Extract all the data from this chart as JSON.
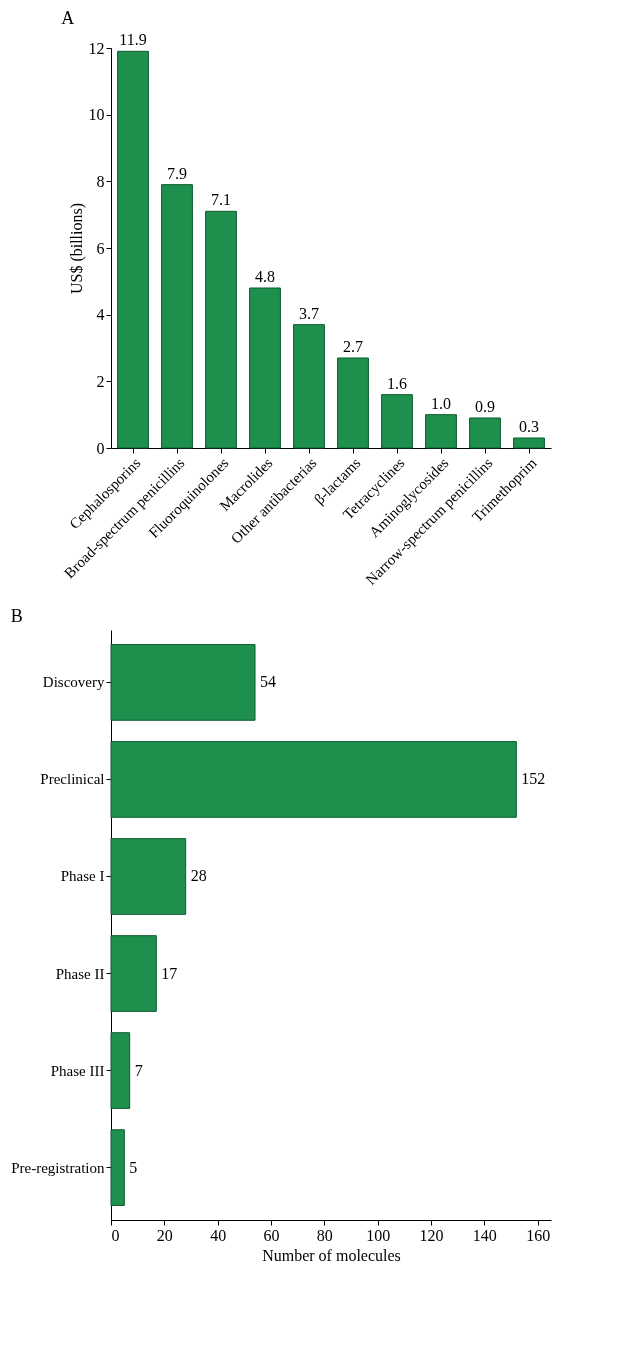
{
  "chart_data": [
    {
      "type": "bar",
      "title": "A",
      "ylabel": "US$ (billions)",
      "categories": [
        "Cephalosporins",
        "Broad-spectrum penicillins",
        "Fluoroquinolones",
        "Macrolides",
        "Other antibacterias",
        "β-lactams",
        "Tetracyclines",
        "Aminoglycosides",
        "Narrow-spectrum penicillins",
        "Trimethoprim"
      ],
      "values": [
        11.9,
        7.9,
        7.1,
        4.8,
        3.7,
        2.7,
        1.6,
        1.0,
        0.9,
        0.3
      ],
      "value_labels": [
        "11.9",
        "7.9",
        "7.1",
        "4.8",
        "3.7",
        "2.7",
        "1.6",
        "1.0",
        "0.9",
        "0.3"
      ],
      "color": "#1f8f4e",
      "ylim": [
        0,
        12
      ],
      "yticks": [
        0,
        2,
        4,
        6,
        8,
        10,
        12
      ]
    },
    {
      "type": "bar",
      "orientation": "horizontal",
      "title": "B",
      "xlabel": "Number of molecules",
      "categories": [
        "Discovery",
        "Preclinical",
        "Phase I",
        "Phase II",
        "Phase III",
        "Pre-registration"
      ],
      "values": [
        54,
        152,
        28,
        17,
        7,
        5
      ],
      "data_labels": true,
      "color": "#1f8f4e",
      "xlim": [
        0,
        165
      ],
      "xticks": [
        0,
        20,
        40,
        60,
        80,
        100,
        120,
        140,
        160
      ]
    }
  ]
}
